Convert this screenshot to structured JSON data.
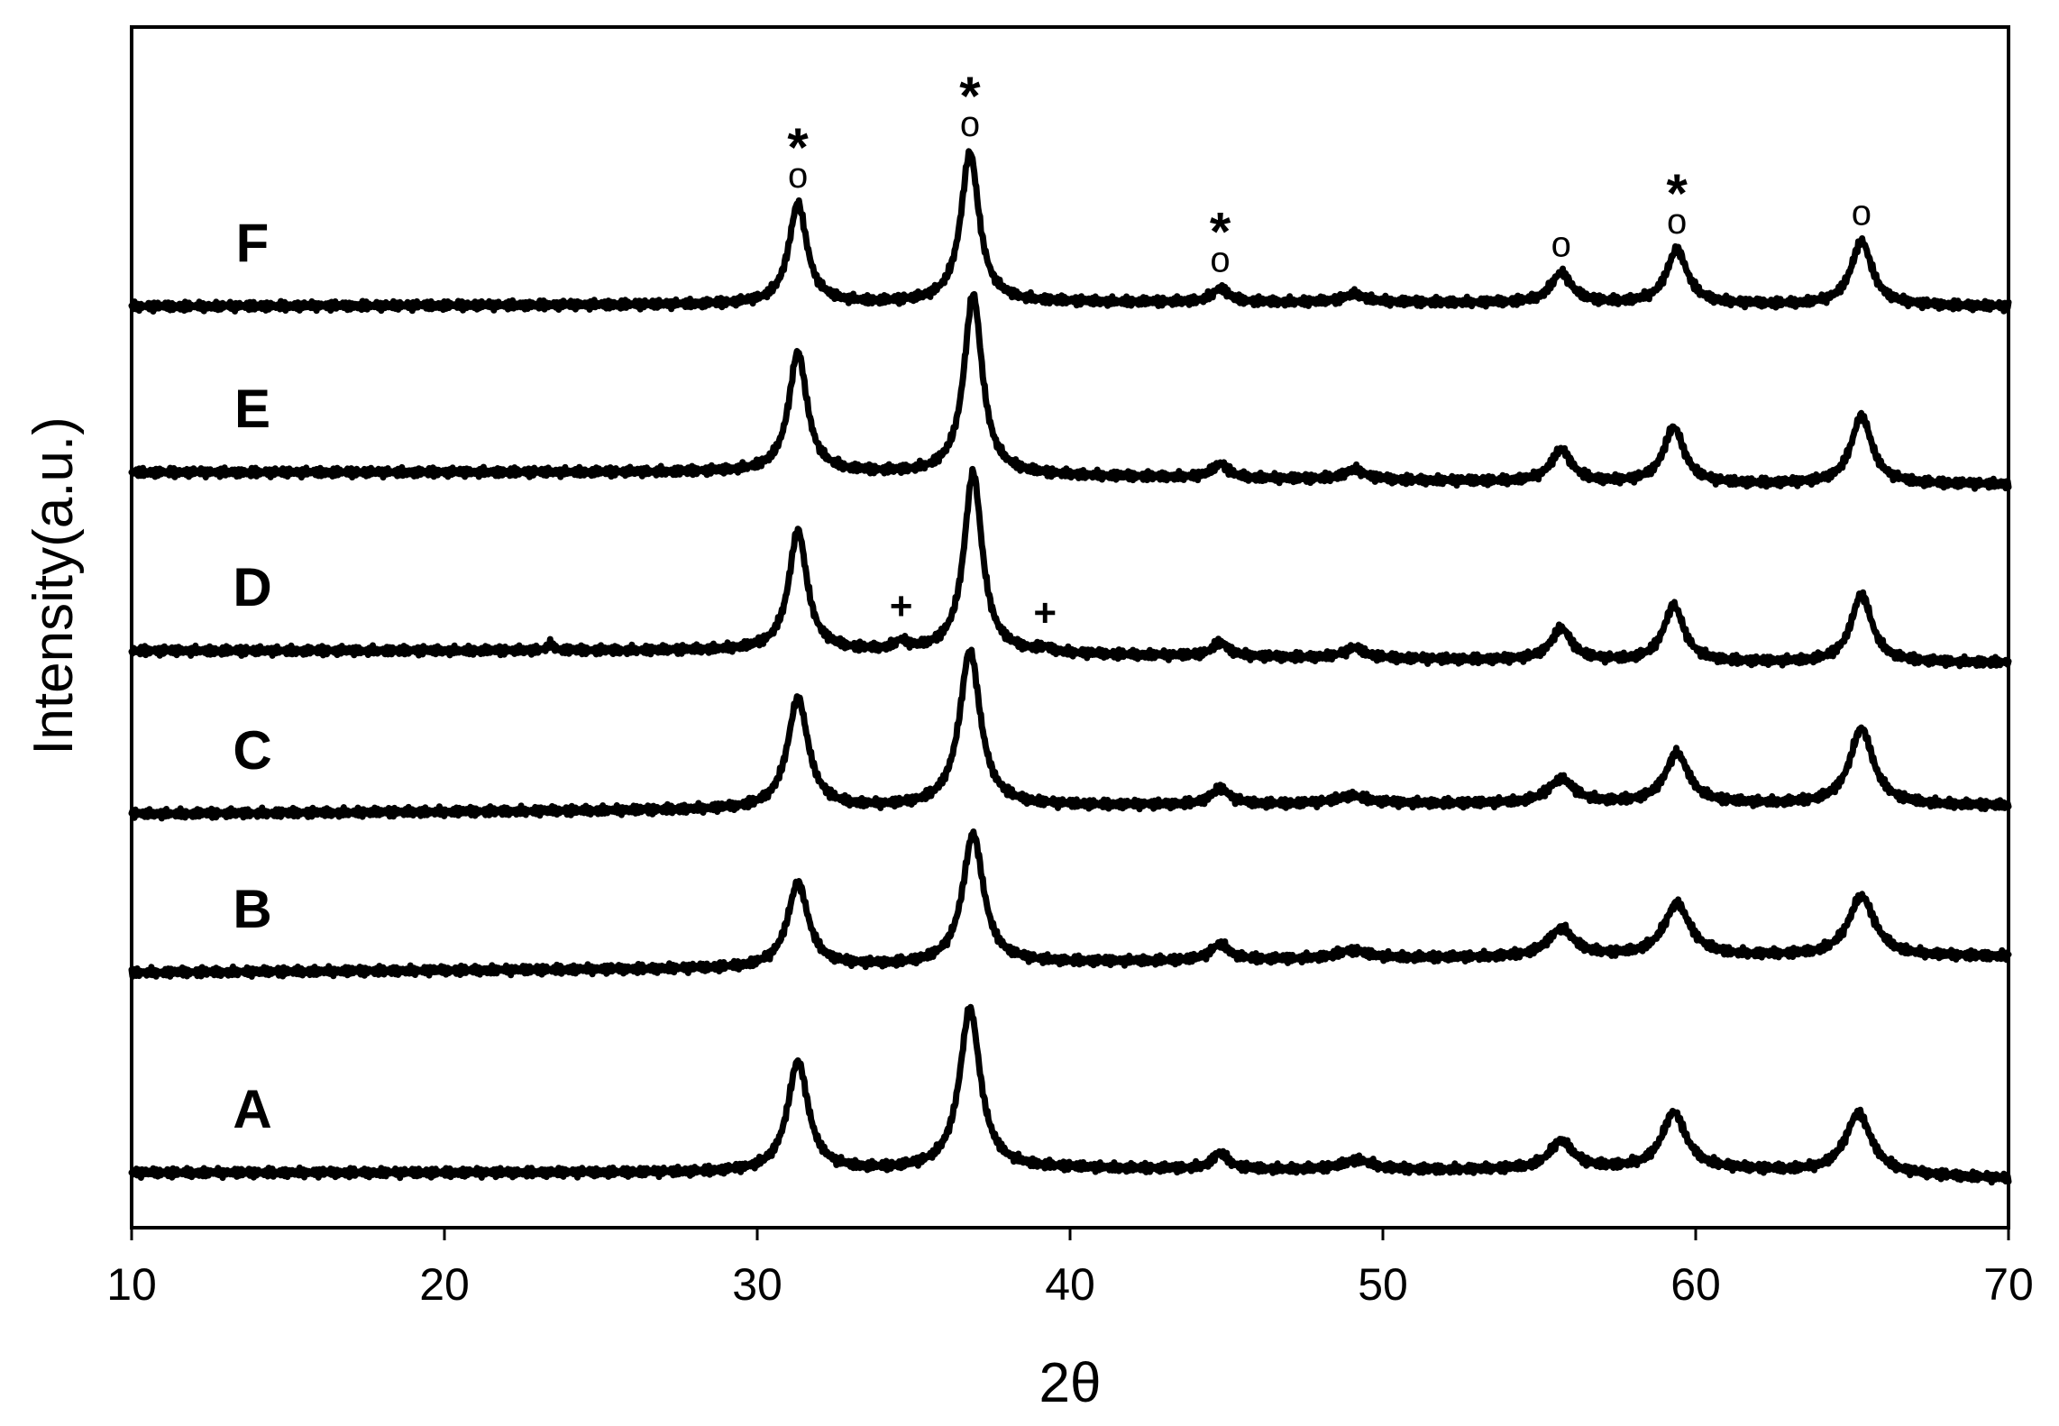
{
  "chart_data": {
    "type": "line",
    "title": "",
    "xlabel": "2θ",
    "ylabel": "Intensity(a.u.)",
    "xlim": [
      10,
      70
    ],
    "xticks": [
      10,
      20,
      30,
      40,
      50,
      60,
      70
    ],
    "y_ticks_shown": false,
    "grid": false,
    "legend": "none",
    "line_color": "#000000",
    "series": [
      {
        "name": "A",
        "baseline": [
          [
            10,
            0.0
          ],
          [
            30,
            0.0
          ],
          [
            40,
            0.02
          ],
          [
            50,
            0.01
          ],
          [
            60,
            0.02
          ],
          [
            70,
            -0.03
          ]
        ],
        "peaks": [
          [
            31.3,
            0.55,
            0.4
          ],
          [
            36.8,
            0.8,
            0.4
          ],
          [
            44.8,
            0.08,
            0.3
          ],
          [
            49.2,
            0.05,
            0.6
          ],
          [
            55.7,
            0.14,
            0.45
          ],
          [
            59.3,
            0.28,
            0.45
          ],
          [
            65.2,
            0.3,
            0.5
          ]
        ]
      },
      {
        "name": "B",
        "baseline": [
          [
            10,
            0.0
          ],
          [
            30,
            0.02
          ],
          [
            40,
            0.05
          ],
          [
            50,
            0.07
          ],
          [
            60,
            0.08
          ],
          [
            70,
            0.08
          ]
        ],
        "peaks": [
          [
            31.3,
            0.42,
            0.4
          ],
          [
            36.9,
            0.65,
            0.4
          ],
          [
            44.8,
            0.08,
            0.35
          ],
          [
            49.0,
            0.04,
            0.6
          ],
          [
            55.7,
            0.14,
            0.5
          ],
          [
            59.4,
            0.26,
            0.5
          ],
          [
            65.3,
            0.3,
            0.5
          ]
        ]
      },
      {
        "name": "C",
        "baseline": [
          [
            10,
            0.0
          ],
          [
            30,
            0.02
          ],
          [
            40,
            0.04
          ],
          [
            50,
            0.05
          ],
          [
            60,
            0.05
          ],
          [
            70,
            0.04
          ]
        ],
        "peaks": [
          [
            31.3,
            0.55,
            0.4
          ],
          [
            36.8,
            0.78,
            0.4
          ],
          [
            44.8,
            0.08,
            0.35
          ],
          [
            49.0,
            0.04,
            0.6
          ],
          [
            55.7,
            0.12,
            0.5
          ],
          [
            59.4,
            0.25,
            0.45
          ],
          [
            65.3,
            0.38,
            0.45
          ]
        ]
      },
      {
        "name": "D",
        "baseline": [
          [
            10,
            0.0
          ],
          [
            30,
            0.0
          ],
          [
            40,
            -0.02
          ],
          [
            50,
            -0.04
          ],
          [
            60,
            -0.06
          ],
          [
            70,
            -0.06
          ]
        ],
        "peaks": [
          [
            23.4,
            0.03,
            0.15
          ],
          [
            31.3,
            0.6,
            0.35
          ],
          [
            34.6,
            0.04,
            0.25
          ],
          [
            36.9,
            0.9,
            0.35
          ],
          [
            39.2,
            0.02,
            0.25
          ],
          [
            44.8,
            0.07,
            0.3
          ],
          [
            49.1,
            0.05,
            0.4
          ],
          [
            55.7,
            0.16,
            0.4
          ],
          [
            59.3,
            0.28,
            0.4
          ],
          [
            65.3,
            0.34,
            0.4
          ]
        ]
      },
      {
        "name": "E",
        "baseline": [
          [
            10,
            0.0
          ],
          [
            30,
            0.0
          ],
          [
            40,
            -0.02
          ],
          [
            50,
            -0.04
          ],
          [
            60,
            -0.06
          ],
          [
            70,
            -0.06
          ]
        ],
        "peaks": [
          [
            31.3,
            0.6,
            0.35
          ],
          [
            36.9,
            0.9,
            0.35
          ],
          [
            44.8,
            0.07,
            0.3
          ],
          [
            49.1,
            0.05,
            0.4
          ],
          [
            55.7,
            0.16,
            0.4
          ],
          [
            59.3,
            0.28,
            0.4
          ],
          [
            65.3,
            0.34,
            0.4
          ]
        ]
      },
      {
        "name": "F",
        "baseline": [
          [
            10,
            0.0
          ],
          [
            30,
            0.01
          ],
          [
            40,
            0.02
          ],
          [
            50,
            0.02
          ],
          [
            60,
            0.01
          ],
          [
            70,
            0.0
          ]
        ],
        "peaks": [
          [
            31.3,
            0.5,
            0.35
          ],
          [
            36.8,
            0.75,
            0.35
          ],
          [
            44.8,
            0.07,
            0.3
          ],
          [
            49.1,
            0.04,
            0.4
          ],
          [
            55.7,
            0.15,
            0.4
          ],
          [
            59.4,
            0.27,
            0.4
          ],
          [
            65.3,
            0.32,
            0.4
          ]
        ]
      }
    ],
    "annotations": [
      {
        "series": "F",
        "x": 31.3,
        "text": "o",
        "star": true
      },
      {
        "series": "F",
        "x": 36.8,
        "text": "o",
        "star": true
      },
      {
        "series": "F",
        "x": 44.8,
        "text": "o",
        "star": true
      },
      {
        "series": "F",
        "x": 55.7,
        "text": "o",
        "star": false
      },
      {
        "series": "F",
        "x": 59.4,
        "text": "o",
        "star": true
      },
      {
        "series": "F",
        "x": 65.3,
        "text": "o",
        "star": false
      },
      {
        "series": "D",
        "x": 34.6,
        "text": "+",
        "star": false
      },
      {
        "series": "D",
        "x": 39.2,
        "text": "+",
        "star": false
      }
    ],
    "star_symbol": "*"
  }
}
